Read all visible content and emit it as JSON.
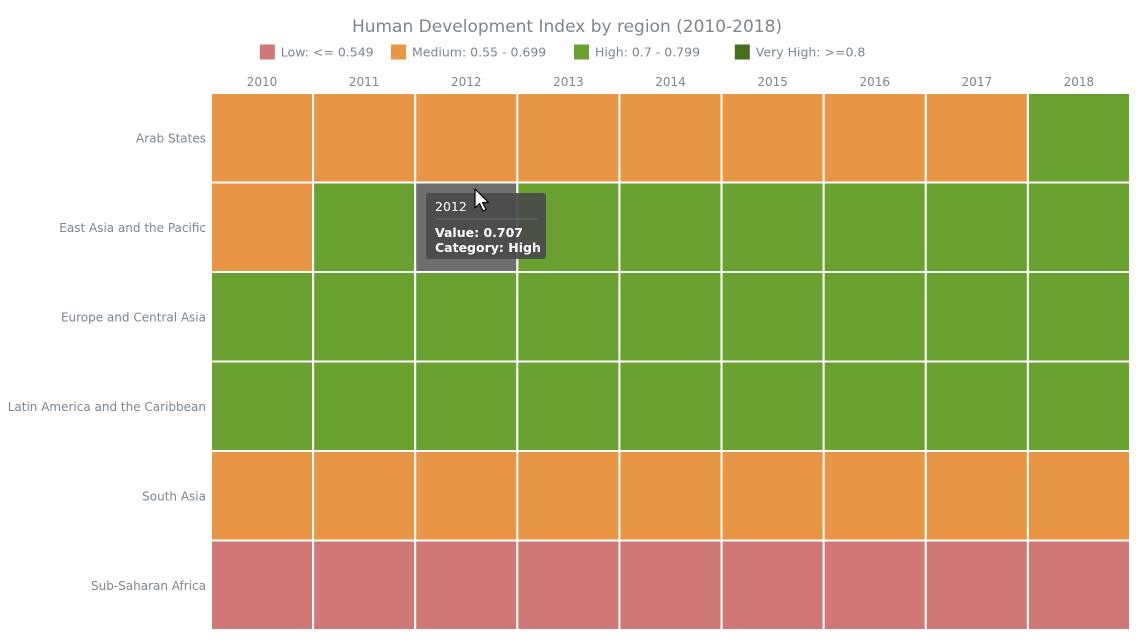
{
  "chart_data": {
    "type": "heatmap",
    "title": "Human Development Index by region (2010-2018)",
    "x_categories": [
      "2010",
      "2011",
      "2012",
      "2013",
      "2014",
      "2015",
      "2016",
      "2017",
      "2018"
    ],
    "y_categories": [
      "Arab States",
      "East Asia and the Pacific",
      "Europe and Central Asia",
      "Latin America and the Caribbean",
      "South Asia",
      "Sub-Saharan Africa"
    ],
    "legend": {
      "placement": "top-center",
      "entries": [
        {
          "key": "low",
          "label": "Low: <= 0.549",
          "color": "#d07777"
        },
        {
          "key": "medium",
          "label": "Medium: 0.55 - 0.699",
          "color": "#e89645"
        },
        {
          "key": "high",
          "label": "High: 0.7 - 0.799",
          "color": "#6aa231"
        },
        {
          "key": "very_high",
          "label": "Very High: >=0.8",
          "color": "#466e1d"
        }
      ]
    },
    "categories_grid": [
      [
        "medium",
        "medium",
        "medium",
        "medium",
        "medium",
        "medium",
        "medium",
        "medium",
        "high"
      ],
      [
        "medium",
        "high",
        "high",
        "high",
        "high",
        "high",
        "high",
        "high",
        "high"
      ],
      [
        "high",
        "high",
        "high",
        "high",
        "high",
        "high",
        "high",
        "high",
        "high"
      ],
      [
        "high",
        "high",
        "high",
        "high",
        "high",
        "high",
        "high",
        "high",
        "high"
      ],
      [
        "medium",
        "medium",
        "medium",
        "medium",
        "medium",
        "medium",
        "medium",
        "medium",
        "medium"
      ],
      [
        "low",
        "low",
        "low",
        "low",
        "low",
        "low",
        "low",
        "low",
        "low"
      ]
    ],
    "hovered_cell": {
      "row": 1,
      "col": 2
    }
  },
  "tooltip": {
    "title": "2012",
    "value_line": "Value: 0.707",
    "category_line": "Category: High"
  },
  "colors": {
    "hover_cell": "#6e6e6e",
    "tooltip_bg": "#4a4a4a",
    "text": "#7c868e",
    "grid_line": "#ffffff"
  }
}
